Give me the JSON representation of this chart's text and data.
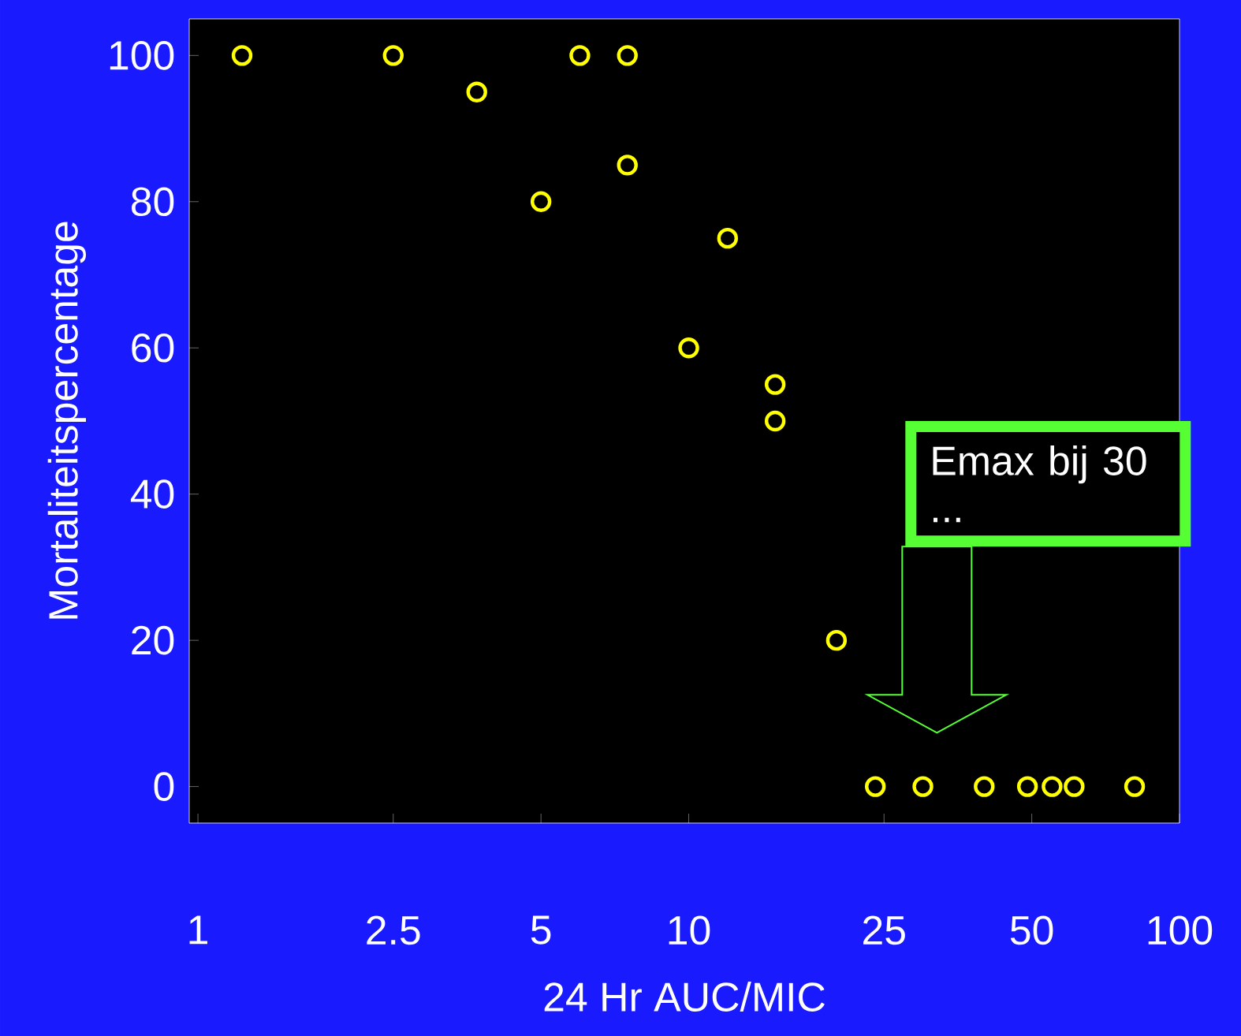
{
  "chart_data": {
    "type": "scatter",
    "xlabel": "24 Hr AUC/MIC",
    "ylabel": "Mortaliteitspercentage",
    "x": [
      1.23,
      2.5,
      3.7,
      6,
      7.5,
      7.5,
      5,
      12,
      10,
      15,
      15,
      20,
      24,
      30,
      40,
      49,
      55,
      61,
      81
    ],
    "values": [
      100,
      100,
      95,
      100,
      100,
      85,
      80,
      75,
      60,
      55,
      50,
      20,
      0,
      0,
      0,
      0,
      0,
      0,
      0
    ],
    "color": "#ffff00",
    "marker": "circle",
    "log": "x",
    "xlim": [
      0.96,
      100
    ],
    "ylim": [
      -5,
      105
    ],
    "xticks": [
      1,
      2.5,
      5,
      10,
      25,
      50,
      100
    ],
    "yticks": [
      0,
      20,
      40,
      60,
      80,
      100
    ],
    "grid": false,
    "annotations": [
      "Emax bij 30 ..."
    ]
  }
}
